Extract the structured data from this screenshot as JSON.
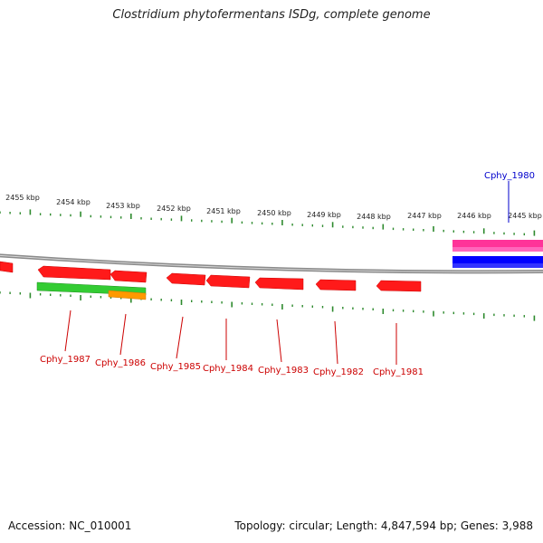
{
  "title": "Clostridium phytofermentans ISDg, complete genome",
  "accession": "Accession: NC_010001",
  "topology": "Topology: circular; Length: 4,847,594 bp; Genes: 3,988",
  "colors": {
    "backbone": "#8c8c8c",
    "tick": "#2d8a2d",
    "cds": "#ff0000",
    "gene_label": "#cc0000",
    "pink_feature": "#ff3399",
    "blue_feature": "#0000ff",
    "blue_label": "#0000cc",
    "green_feature": "#33cc33",
    "orange_feature": "#ff9900"
  },
  "scale_labels": [
    "2455 kbp",
    "2454 kbp",
    "2453 kbp",
    "2452 kbp",
    "2451 kbp",
    "2450 kbp",
    "2449 kbp",
    "2448 kbp",
    "2447 kbp",
    "2446 kbp",
    "2445 kbp"
  ],
  "gene_labels": [
    {
      "id": "Cphy_1987"
    },
    {
      "id": "Cphy_1986"
    },
    {
      "id": "Cphy_1985"
    },
    {
      "id": "Cphy_1984"
    },
    {
      "id": "Cphy_1983"
    },
    {
      "id": "Cphy_1982"
    },
    {
      "id": "Cphy_1981"
    }
  ],
  "top_label": {
    "id": "Cphy_1980"
  }
}
